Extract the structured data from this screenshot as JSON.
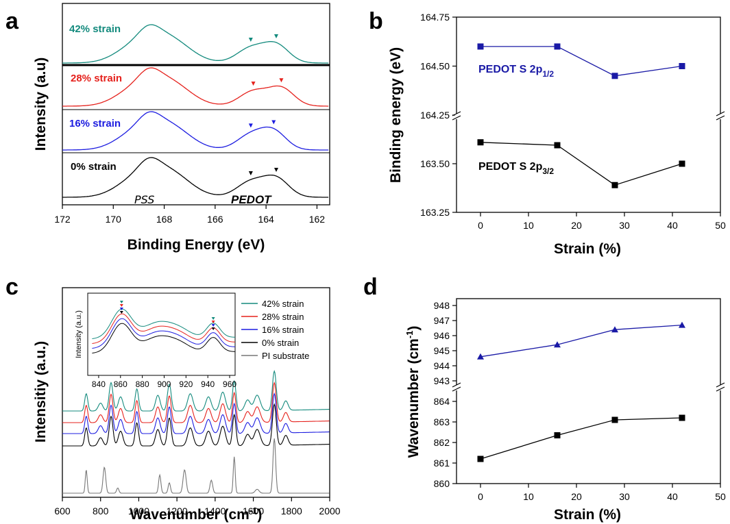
{
  "chart_data": [
    {
      "id": "a",
      "panel_label": "a",
      "type": "line",
      "xlabel": "Binding Energy (eV)",
      "ylabel": "Intensity (a.u)",
      "xlim": [
        172,
        161.5
      ],
      "x_ticks": [
        "172",
        "170",
        "168",
        "166",
        "164",
        "162"
      ],
      "series": [
        {
          "name": "42% strain",
          "color": "#138a7d",
          "peaks": [
            164.6,
            163.6
          ]
        },
        {
          "name": "28% strain",
          "color": "#e5211c",
          "peaks": [
            164.5,
            163.4
          ]
        },
        {
          "name": "16% strain",
          "color": "#1c1ce0",
          "peaks": [
            164.6,
            163.7
          ]
        },
        {
          "name": "0% strain",
          "color": "#000000",
          "peaks": [
            164.6,
            163.6
          ]
        }
      ],
      "annotations": [
        "PSS",
        "PEDOT"
      ]
    },
    {
      "id": "b",
      "panel_label": "b",
      "type": "line",
      "xlabel": "Strain (%)",
      "ylabel": "Binding energy (eV)",
      "xlim": [
        -5,
        50
      ],
      "x_ticks": [
        "0",
        "10",
        "20",
        "30",
        "40",
        "50"
      ],
      "y_ticks_upper": [
        "164.25",
        "164.50",
        "164.75"
      ],
      "y_ticks_lower": [
        "163.25",
        "163.50"
      ],
      "broken_axis": true,
      "series": [
        {
          "name_main": "PEDOT S 2p",
          "name_sub": "1/2",
          "color": "#1a1aa6",
          "marker": "square",
          "x": [
            0,
            16,
            28,
            42
          ],
          "y": [
            164.6,
            164.6,
            164.45,
            164.5
          ]
        },
        {
          "name_main": "PEDOT S 2p",
          "name_sub": "3/2",
          "color": "#000000",
          "marker": "square",
          "x": [
            0,
            16,
            28,
            42
          ],
          "y": [
            163.61,
            163.595,
            163.39,
            163.5
          ]
        }
      ]
    },
    {
      "id": "c",
      "panel_label": "c",
      "type": "line",
      "xlabel_main": "Wavenumber (cm",
      "xlabel_sup": "-1",
      "xlabel_end": ")",
      "ylabel": "Intensitiy (a.u.)",
      "xlim": [
        600,
        2000
      ],
      "x_ticks": [
        "600",
        "800",
        "1000",
        "1200",
        "1400",
        "1600",
        "1800",
        "2000"
      ],
      "series": [
        {
          "name": "42% strain",
          "color": "#138a7d"
        },
        {
          "name": "28% strain",
          "color": "#e5211c"
        },
        {
          "name": "16% strain",
          "color": "#1c1ce0"
        },
        {
          "name": "0% strain",
          "color": "#000000"
        },
        {
          "name": "PI substrate",
          "color": "#777777"
        }
      ],
      "peaks": [
        725,
        800,
        855,
        905,
        990,
        1100,
        1160,
        1270,
        1365,
        1440,
        1500,
        1570,
        1620,
        1710,
        1770
      ],
      "inset": {
        "ylabel": "Intensity (a.u.)",
        "xlim": [
          830,
          965
        ],
        "x_ticks": [
          "840",
          "860",
          "880",
          "900",
          "920",
          "940",
          "960"
        ]
      }
    },
    {
      "id": "d",
      "panel_label": "d",
      "type": "line",
      "xlabel": "Strain (%)",
      "ylabel_main": "Wavenumber (cm",
      "ylabel_sup": "-1",
      "ylabel_end": ")",
      "xlim": [
        -5,
        50
      ],
      "x_ticks": [
        "0",
        "10",
        "20",
        "30",
        "40",
        "50"
      ],
      "y_ticks_upper": [
        "943",
        "944",
        "945",
        "946",
        "947",
        "948"
      ],
      "y_ticks_lower": [
        "860",
        "861",
        "862",
        "863",
        "864"
      ],
      "broken_axis": true,
      "series": [
        {
          "color": "#1a1aa6",
          "marker": "triangle",
          "x": [
            0,
            16,
            28,
            42
          ],
          "y": [
            944.6,
            945.4,
            946.4,
            946.7
          ]
        },
        {
          "color": "#000000",
          "marker": "square",
          "x": [
            0,
            16,
            28,
            42
          ],
          "y": [
            861.2,
            862.35,
            863.1,
            863.2
          ]
        }
      ]
    }
  ]
}
